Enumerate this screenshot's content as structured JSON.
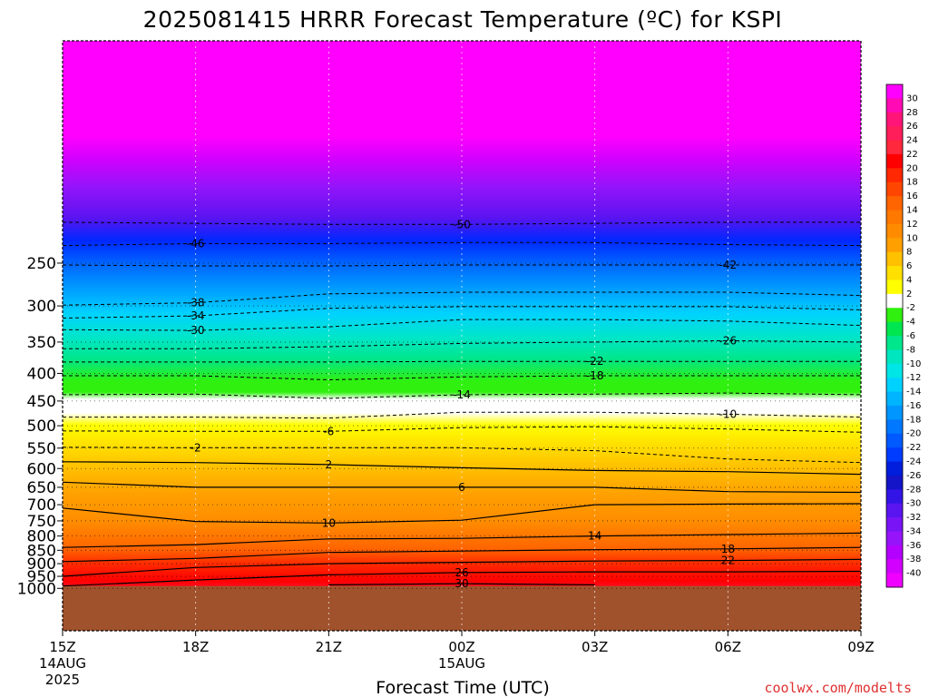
{
  "title": "2025081415 HRRR Forecast Temperature (ºC) for KSPI",
  "credit": "coolwx.com/modelts",
  "chart_data": {
    "type": "time-height contour",
    "title": "2025081415 HRRR Forecast Temperature (ºC) for KSPI",
    "xlabel": "Forecast Time (UTC)",
    "ylabel": "",
    "x_range_hours": [
      0,
      18
    ],
    "y_range_hPa": [
      190,
      1040
    ],
    "y_scale": "log",
    "x_ticks": [
      {
        "hour": 0,
        "lines": [
          "15Z",
          "14AUG",
          "2025"
        ]
      },
      {
        "hour": 3,
        "lines": [
          "18Z"
        ]
      },
      {
        "hour": 6,
        "lines": [
          "21Z"
        ]
      },
      {
        "hour": 9,
        "lines": [
          "00Z",
          "15AUG"
        ]
      },
      {
        "hour": 12,
        "lines": [
          "03Z"
        ]
      },
      {
        "hour": 15,
        "lines": [
          "06Z"
        ]
      },
      {
        "hour": 18,
        "lines": [
          "09Z"
        ]
      }
    ],
    "y_ticks": [
      250,
      300,
      350,
      400,
      450,
      500,
      550,
      600,
      650,
      700,
      750,
      800,
      850,
      900,
      950,
      1000
    ],
    "ground_pressure_hPa": 990,
    "contours_dashed_negative": [
      {
        "value": -50,
        "p": [
          210,
          211,
          212,
          212,
          211,
          210,
          210
        ]
      },
      {
        "value": -46,
        "p": [
          232,
          230,
          230,
          229,
          229,
          231,
          232
        ]
      },
      {
        "value": -42,
        "p": [
          252,
          253,
          253,
          252,
          252,
          252,
          252
        ]
      },
      {
        "value": -38,
        "p": [
          299,
          296,
          285,
          283,
          283,
          283,
          287
        ]
      },
      {
        "value": -34,
        "p": [
          316,
          313,
          303,
          301,
          301,
          301,
          305
        ]
      },
      {
        "value": -30,
        "p": [
          332,
          333,
          328,
          318,
          318,
          320,
          326
        ]
      },
      {
        "value": -26,
        "p": [
          360,
          360,
          357,
          352,
          350,
          348,
          350
        ]
      },
      {
        "value": -22,
        "p": [
          381,
          381,
          381,
          380,
          380,
          380,
          380
        ]
      },
      {
        "value": -18,
        "p": [
          404,
          404,
          411,
          406,
          404,
          404,
          404
        ]
      },
      {
        "value": -14,
        "p": [
          438,
          437,
          445,
          438,
          437,
          435,
          438
        ]
      },
      {
        "value": -10,
        "p": [
          482,
          482,
          484,
          472,
          472,
          476,
          482
        ]
      },
      {
        "value": -6,
        "p": [
          511,
          512,
          512,
          504,
          502,
          507,
          514
        ]
      },
      {
        "value": -2,
        "p": [
          548,
          549,
          549,
          549,
          556,
          576,
          585
        ]
      }
    ],
    "contours_solid_positive": [
      {
        "value": 2,
        "p": [
          583,
          585,
          590,
          598,
          605,
          608,
          615
        ]
      },
      {
        "value": 6,
        "p": [
          636,
          650,
          650,
          650,
          650,
          662,
          664
        ]
      },
      {
        "value": 10,
        "p": [
          710,
          752,
          757,
          748,
          700,
          698,
          697
        ]
      },
      {
        "value": 14,
        "p": [
          840,
          830,
          810,
          808,
          800,
          795,
          790
        ]
      },
      {
        "value": 18,
        "p": [
          892,
          880,
          858,
          853,
          848,
          845,
          840
        ]
      },
      {
        "value": 22,
        "p": [
          950,
          915,
          900,
          895,
          890,
          888,
          884
        ]
      },
      {
        "value": 26,
        "p": [
          990,
          965,
          944,
          935,
          932,
          932,
          930
        ]
      },
      {
        "value": 30,
        "p": [
          null,
          null,
          985,
          980,
          985,
          null,
          null
        ]
      }
    ],
    "contour_labels": [
      "-50",
      "-46",
      "-42",
      "-38",
      "-34",
      "-30",
      "-26",
      "-22",
      "-18",
      "-14",
      "-10",
      "-6",
      "-2",
      "2",
      "6",
      "10",
      "14",
      "18",
      "22",
      "26",
      "30"
    ],
    "colorbar": {
      "ticks": [
        30,
        28,
        26,
        24,
        22,
        20,
        18,
        16,
        14,
        12,
        10,
        8,
        6,
        4,
        2,
        -2,
        -4,
        -6,
        -8,
        -10,
        -12,
        -14,
        -16,
        -18,
        -20,
        -22,
        -24,
        -26,
        -28,
        -30,
        -32,
        -34,
        -36,
        -38,
        -40
      ],
      "colors": [
        "#ff00ff",
        "#ff0ab4",
        "#ff1478",
        "#ff1e5a",
        "#ff283c",
        "#ff0000",
        "#ff2800",
        "#ff4600",
        "#ff6400",
        "#ff7800",
        "#ff8c00",
        "#ffa000",
        "#ffc000",
        "#ffe000",
        "#ffff00",
        "#ffffff",
        "#30f010",
        "#00e650",
        "#00e68c",
        "#00e6be",
        "#00e6e6",
        "#00d2ff",
        "#00b4ff",
        "#0096ff",
        "#0078ff",
        "#005aff",
        "#003cff",
        "#001edc",
        "#1414c8",
        "#3214e6",
        "#5a14f0",
        "#7814f5",
        "#9614fa",
        "#b400ff",
        "#d200ff",
        "#f000ff"
      ]
    }
  }
}
